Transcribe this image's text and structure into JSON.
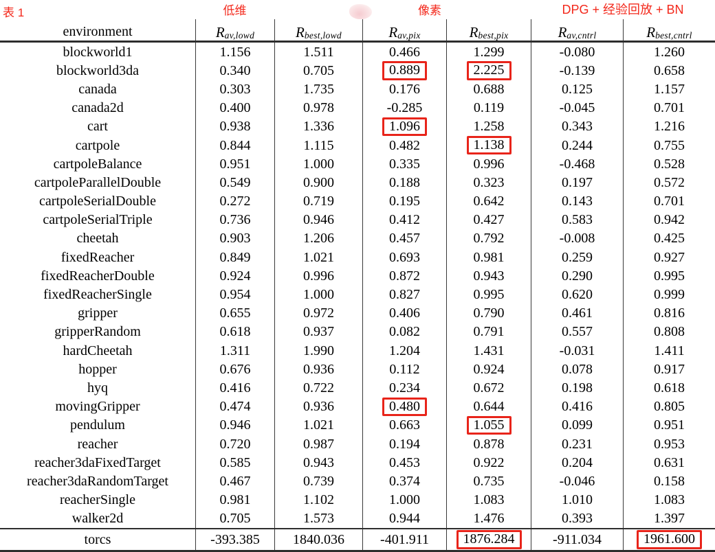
{
  "annotations": {
    "table_label": "表 1",
    "group_lowdim": "低维",
    "group_pixels": "像素",
    "group_dpg": "DPG + 经验回放 + BN"
  },
  "colors": {
    "annotation_red": "#f3281b",
    "highlight_box_red": "#e8241a",
    "rule_dark": "#2d2d2d",
    "smudge_pink": "#f5c9ce"
  },
  "table": {
    "env_header": "environment",
    "columns": [
      {
        "base": "R",
        "sub": "av,lowd"
      },
      {
        "base": "R",
        "sub": "best,lowd"
      },
      {
        "base": "R",
        "sub": "av,pix"
      },
      {
        "base": "R",
        "sub": "best,pix"
      },
      {
        "base": "R",
        "sub": "av,cntrl"
      },
      {
        "base": "R",
        "sub": "best,cntrl"
      }
    ],
    "rows": [
      {
        "env": "blockworld1",
        "values": [
          "1.156",
          "1.511",
          "0.466",
          "1.299",
          "-0.080",
          "1.260"
        ],
        "boxed": []
      },
      {
        "env": "blockworld3da",
        "values": [
          "0.340",
          "0.705",
          "0.889",
          "2.225",
          "-0.139",
          "0.658"
        ],
        "boxed": [
          2,
          3
        ]
      },
      {
        "env": "canada",
        "values": [
          "0.303",
          "1.735",
          "0.176",
          "0.688",
          "0.125",
          "1.157"
        ],
        "boxed": []
      },
      {
        "env": "canada2d",
        "values": [
          "0.400",
          "0.978",
          "-0.285",
          "0.119",
          "-0.045",
          "0.701"
        ],
        "boxed": []
      },
      {
        "env": "cart",
        "values": [
          "0.938",
          "1.336",
          "1.096",
          "1.258",
          "0.343",
          "1.216"
        ],
        "boxed": [
          2
        ]
      },
      {
        "env": "cartpole",
        "values": [
          "0.844",
          "1.115",
          "0.482",
          "1.138",
          "0.244",
          "0.755"
        ],
        "boxed": [
          3
        ]
      },
      {
        "env": "cartpoleBalance",
        "values": [
          "0.951",
          "1.000",
          "0.335",
          "0.996",
          "-0.468",
          "0.528"
        ],
        "boxed": []
      },
      {
        "env": "cartpoleParallelDouble",
        "values": [
          "0.549",
          "0.900",
          "0.188",
          "0.323",
          "0.197",
          "0.572"
        ],
        "boxed": []
      },
      {
        "env": "cartpoleSerialDouble",
        "values": [
          "0.272",
          "0.719",
          "0.195",
          "0.642",
          "0.143",
          "0.701"
        ],
        "boxed": []
      },
      {
        "env": "cartpoleSerialTriple",
        "values": [
          "0.736",
          "0.946",
          "0.412",
          "0.427",
          "0.583",
          "0.942"
        ],
        "boxed": []
      },
      {
        "env": "cheetah",
        "values": [
          "0.903",
          "1.206",
          "0.457",
          "0.792",
          "-0.008",
          "0.425"
        ],
        "boxed": []
      },
      {
        "env": "fixedReacher",
        "values": [
          "0.849",
          "1.021",
          "0.693",
          "0.981",
          "0.259",
          "0.927"
        ],
        "boxed": []
      },
      {
        "env": "fixedReacherDouble",
        "values": [
          "0.924",
          "0.996",
          "0.872",
          "0.943",
          "0.290",
          "0.995"
        ],
        "boxed": []
      },
      {
        "env": "fixedReacherSingle",
        "values": [
          "0.954",
          "1.000",
          "0.827",
          "0.995",
          "0.620",
          "0.999"
        ],
        "boxed": []
      },
      {
        "env": "gripper",
        "values": [
          "0.655",
          "0.972",
          "0.406",
          "0.790",
          "0.461",
          "0.816"
        ],
        "boxed": []
      },
      {
        "env": "gripperRandom",
        "values": [
          "0.618",
          "0.937",
          "0.082",
          "0.791",
          "0.557",
          "0.808"
        ],
        "boxed": []
      },
      {
        "env": "hardCheetah",
        "values": [
          "1.311",
          "1.990",
          "1.204",
          "1.431",
          "-0.031",
          "1.411"
        ],
        "boxed": []
      },
      {
        "env": "hopper",
        "values": [
          "0.676",
          "0.936",
          "0.112",
          "0.924",
          "0.078",
          "0.917"
        ],
        "boxed": []
      },
      {
        "env": "hyq",
        "values": [
          "0.416",
          "0.722",
          "0.234",
          "0.672",
          "0.198",
          "0.618"
        ],
        "boxed": []
      },
      {
        "env": "movingGripper",
        "values": [
          "0.474",
          "0.936",
          "0.480",
          "0.644",
          "0.416",
          "0.805"
        ],
        "boxed": [
          2
        ]
      },
      {
        "env": "pendulum",
        "values": [
          "0.946",
          "1.021",
          "0.663",
          "1.055",
          "0.099",
          "0.951"
        ],
        "boxed": [
          3
        ]
      },
      {
        "env": "reacher",
        "values": [
          "0.720",
          "0.987",
          "0.194",
          "0.878",
          "0.231",
          "0.953"
        ],
        "boxed": []
      },
      {
        "env": "reacher3daFixedTarget",
        "values": [
          "0.585",
          "0.943",
          "0.453",
          "0.922",
          "0.204",
          "0.631"
        ],
        "boxed": []
      },
      {
        "env": "reacher3daRandomTarget",
        "values": [
          "0.467",
          "0.739",
          "0.374",
          "0.735",
          "-0.046",
          "0.158"
        ],
        "boxed": []
      },
      {
        "env": "reacherSingle",
        "values": [
          "0.981",
          "1.102",
          "1.000",
          "1.083",
          "1.010",
          "1.083"
        ],
        "boxed": []
      },
      {
        "env": "walker2d",
        "values": [
          "0.705",
          "1.573",
          "0.944",
          "1.476",
          "0.393",
          "1.397"
        ],
        "boxed": []
      }
    ],
    "footer_row": {
      "env": "torcs",
      "values": [
        "-393.385",
        "1840.036",
        "-401.911",
        "1876.284",
        "-911.034",
        "1961.600"
      ],
      "boxed": [
        3,
        5
      ]
    }
  }
}
